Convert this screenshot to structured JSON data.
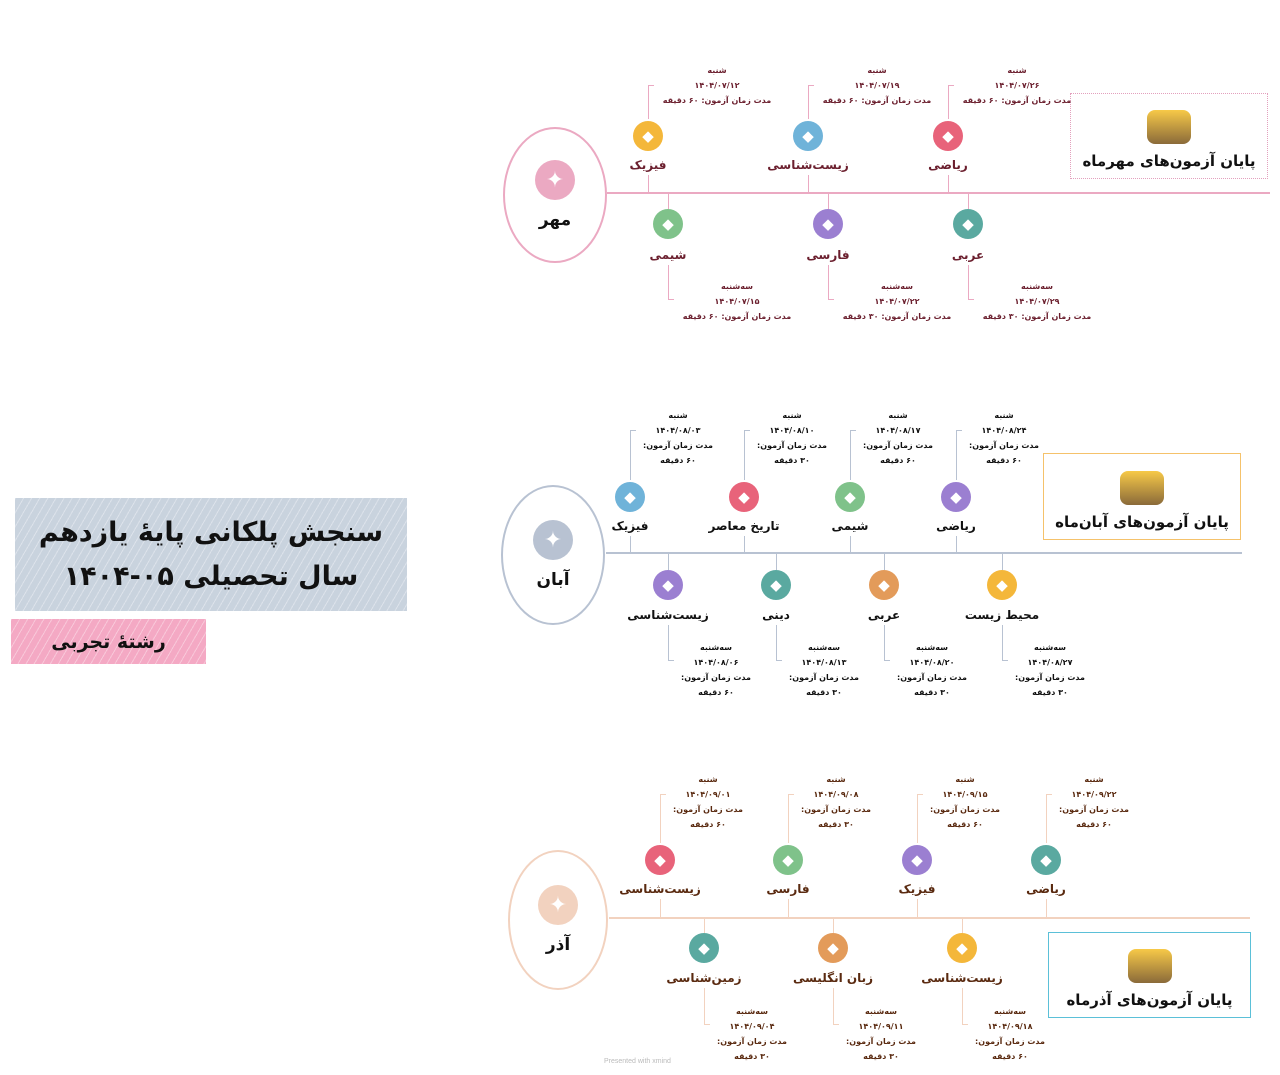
{
  "title": {
    "line1": "سنجش پلکانی پایهٔ یازدهم",
    "line2": "سال تحصیلی ۰۵-۱۴۰۴"
  },
  "subtitle": "رشتهٔ تجربی",
  "footer": "Presented with xmind",
  "colors": {
    "mehr": "#eba9c2",
    "aban": "#b8c2d2",
    "azar": "#f2d2bf",
    "mehr_text": "#6b1f2e",
    "aban_text": "#111111",
    "azar_text": "#5a2a10",
    "mehr_end_border": "#e3a0bd",
    "aban_end_border": "#f5c26b",
    "azar_end_border": "#5bc0d8"
  },
  "sections": [
    {
      "month": "مهر",
      "month_icon": "wizard-hat-icon",
      "end_label": "پایان آزمون‌های مهرماه",
      "end_icon": "treasure-icon",
      "top": [
        {
          "subject": "فیزیک",
          "icon": "lightbulb-circuit-icon",
          "day": "شنبه",
          "date": "۱۴۰۴/۰۷/۱۲",
          "duration_label": "مدت زمان آزمون:",
          "duration_value": "۶۰ دقیقه"
        },
        {
          "subject": "زیست‌شناسی",
          "icon": "petri-dish-icon",
          "day": "شنبه",
          "date": "۱۴۰۴/۰۷/۱۹",
          "duration_label": "مدت زمان آزمون:",
          "duration_value": "۶۰ دقیقه"
        },
        {
          "subject": "ریاضی",
          "icon": "math-operators-icon",
          "day": "شنبه",
          "date": "۱۴۰۴/۰۷/۲۶",
          "duration_label": "مدت زمان آزمون:",
          "duration_value": "۶۰ دقیقه"
        }
      ],
      "bottom": [
        {
          "subject": "شیمی",
          "icon": "flask-icon",
          "day": "سه‌شنبه",
          "date": "۱۴۰۴/۰۷/۱۵",
          "duration_label": "مدت زمان آزمون:",
          "duration_value": "۶۰ دقیقه"
        },
        {
          "subject": "فارسی",
          "icon": "quill-scroll-icon",
          "day": "سه‌شنبه",
          "date": "۱۴۰۴/۰۷/۲۲",
          "duration_label": "مدت زمان آزمون:",
          "duration_value": "۳۰ دقیقه"
        },
        {
          "subject": "عربی",
          "icon": "desert-building-icon",
          "day": "سه‌شنبه",
          "date": "۱۴۰۴/۰۷/۲۹",
          "duration_label": "مدت زمان آزمون:",
          "duration_value": "۳۰ دقیقه"
        }
      ]
    },
    {
      "month": "آبان",
      "month_icon": "cake-icon",
      "end_label": "پایان آزمون‌های آبان‌ماه",
      "end_icon": "treasure-icon",
      "top": [
        {
          "subject": "فیزیک",
          "icon": "falling-apple-icon",
          "day": "شنبه",
          "date": "۱۴۰۴/۰۸/۰۳",
          "duration_label": "مدت زمان آزمون:",
          "duration_value": "۶۰ دقیقه"
        },
        {
          "subject": "تاریخ معاصر",
          "icon": "museum-icon",
          "day": "شنبه",
          "date": "۱۴۰۴/۰۸/۱۰",
          "duration_label": "مدت زمان آزمون:",
          "duration_value": "۳۰ دقیقه"
        },
        {
          "subject": "شیمی",
          "icon": "ph-flask-icon",
          "day": "شنبه",
          "date": "۱۴۰۴/۰۸/۱۷",
          "duration_label": "مدت زمان آزمون:",
          "duration_value": "۶۰ دقیقه"
        },
        {
          "subject": "ریاضی",
          "icon": "calculator-icon",
          "day": "شنبه",
          "date": "۱۴۰۴/۰۸/۲۴",
          "duration_label": "مدت زمان آزمون:",
          "duration_value": "۶۰ دقیقه"
        }
      ],
      "bottom": [
        {
          "subject": "زیست‌شناسی",
          "icon": "cell-icon",
          "day": "سه‌شنبه",
          "date": "۱۴۰۴/۰۸/۰۶",
          "duration_label": "مدت زمان آزمون:",
          "duration_value": "۶۰ دقیقه"
        },
        {
          "subject": "دینی",
          "icon": "crescent-star-icon",
          "day": "سه‌شنبه",
          "date": "۱۴۰۴/۰۸/۱۳",
          "duration_label": "مدت زمان آزمون:",
          "duration_value": "۳۰ دقیقه"
        },
        {
          "subject": "عربی",
          "icon": "translate-icon",
          "day": "سه‌شنبه",
          "date": "۱۴۰۴/۰۸/۲۰",
          "duration_label": "مدت زمان آزمون:",
          "duration_value": "۳۰ دقیقه"
        },
        {
          "subject": "محیط زیست",
          "icon": "landscape-icon",
          "day": "سه‌شنبه",
          "date": "۱۴۰۴/۰۸/۲۷",
          "duration_label": "مدت زمان آزمون:",
          "duration_value": "۳۰ دقیقه"
        }
      ]
    },
    {
      "month": "آذر",
      "month_icon": "books-icon",
      "end_label": "پایان آزمون‌های آذرماه",
      "end_icon": "cake-icon",
      "top": [
        {
          "subject": "زیست‌شناسی",
          "icon": "dna-icon",
          "day": "شنبه",
          "date": "۱۴۰۴/۰۹/۰۱",
          "duration_label": "مدت زمان آزمون:",
          "duration_value": "۶۰ دقیقه"
        },
        {
          "subject": "فارسی",
          "icon": "scroll-pen-icon",
          "day": "شنبه",
          "date": "۱۴۰۴/۰۹/۰۸",
          "duration_label": "مدت زمان آزمون:",
          "duration_value": "۳۰ دقیقه"
        },
        {
          "subject": "فیزیک",
          "icon": "atom-icon",
          "day": "شنبه",
          "date": "۱۴۰۴/۰۹/۱۵",
          "duration_label": "مدت زمان آزمون:",
          "duration_value": "۶۰ دقیقه"
        },
        {
          "subject": "ریاضی",
          "icon": "math-operators-icon",
          "day": "شنبه",
          "date": "۱۴۰۴/۰۹/۲۲",
          "duration_label": "مدت زمان آزمون:",
          "duration_value": "۶۰ دقیقه"
        }
      ],
      "bottom": [
        {
          "subject": "زمین‌شناسی",
          "icon": "earth-layers-icon",
          "day": "سه‌شنبه",
          "date": "۱۴۰۴/۰۹/۰۴",
          "duration_label": "مدت زمان آزمون:",
          "duration_value": "۳۰ دقیقه"
        },
        {
          "subject": "زبان انگلیسی",
          "icon": "chalkboard-icon",
          "day": "سه‌شنبه",
          "date": "۱۴۰۴/۰۹/۱۱",
          "duration_label": "مدت زمان آزمون:",
          "duration_value": "۳۰ دقیقه"
        },
        {
          "subject": "زیست‌شناسی",
          "icon": "bacteria-icon",
          "day": "سه‌شنبه",
          "date": "۱۴۰۴/۰۹/۱۸",
          "duration_label": "مدت زمان آزمون:",
          "duration_value": "۶۰ دقیقه"
        }
      ]
    }
  ]
}
